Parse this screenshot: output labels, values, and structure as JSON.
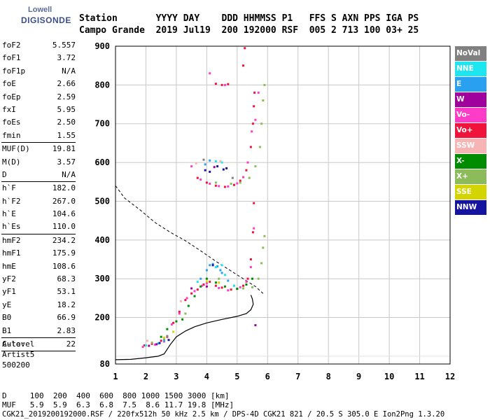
{
  "logo": {
    "line1": "Lowell",
    "line2": "DIGISONDE"
  },
  "header": {
    "labels": "Station       YYYY DAY    DDD HHMMSS P1   FFS S AXN PPS IGA PS",
    "values": "Campo Grande  2019 Jul19  200 192000 RSF  005 2 713 100 03+ 25"
  },
  "params": [
    {
      "name": "foF2",
      "value": "5.557"
    },
    {
      "name": "foF1",
      "value": "3.72"
    },
    {
      "name": "foF1p",
      "value": "N/A"
    },
    {
      "name": "foE",
      "value": "2.66"
    },
    {
      "name": "foEp",
      "value": "2.59"
    },
    {
      "name": "fxI",
      "value": "5.95"
    },
    {
      "name": "foEs",
      "value": "2.50"
    },
    {
      "name": "fmin",
      "value": "1.55"
    },
    {
      "sep": true
    },
    {
      "name": "MUF(D)",
      "value": "19.81"
    },
    {
      "name": "M(D)",
      "value": "3.57"
    },
    {
      "name": "D",
      "value": "N/A"
    },
    {
      "sep": true
    },
    {
      "name": "h`F",
      "value": "182.0"
    },
    {
      "name": "h`F2",
      "value": "267.0"
    },
    {
      "name": "h`E",
      "value": "104.6"
    },
    {
      "name": "h`Es",
      "value": "110.0"
    },
    {
      "sep": true
    },
    {
      "name": "hmF2",
      "value": "234.2"
    },
    {
      "name": "hmF1",
      "value": "175.9"
    },
    {
      "name": "hmE",
      "value": "108.6"
    },
    {
      "name": "yF2",
      "value": "68.3"
    },
    {
      "name": "yF1",
      "value": "53.1"
    },
    {
      "name": "yE",
      "value": "18.2"
    },
    {
      "name": "B0",
      "value": "66.9"
    },
    {
      "name": "B1",
      "value": "2.83"
    },
    {
      "sep": true
    },
    {
      "name": "C-level",
      "value": "22"
    },
    {
      "sep": true
    }
  ],
  "auto": {
    "line1": "Auto:",
    "line2": "Artist5",
    "line3": "500200"
  },
  "legend": [
    {
      "label": "NoVal",
      "color": "#808080"
    },
    {
      "label": "NNE",
      "color": "#1ee6f0"
    },
    {
      "label": "E",
      "color": "#2aa0f0"
    },
    {
      "label": "W",
      "color": "#a0009c"
    },
    {
      "label": "Vo-",
      "color": "#ff3cc8"
    },
    {
      "label": "Vo+",
      "color": "#f0143c"
    },
    {
      "label": "SSW",
      "color": "#f6b4b4"
    },
    {
      "label": "X-",
      "color": "#008c00"
    },
    {
      "label": "X+",
      "color": "#8cbc5a"
    },
    {
      "label": "SSE",
      "color": "#d4d400"
    },
    {
      "label": "NNW",
      "color": "#1414a0"
    }
  ],
  "bottom": {
    "d_line": "D     100  200  400  600  800 1000 1500 3000 [km]",
    "muf_line": "MUF   5.9  5.9  6.3  6.8  7.5  8.6 11.7 19.8 [MHz]",
    "footer": "CGK21_2019200192000.RSF / 220fx512h 50 kHz 2.5 km / DPS-4D CGK21 821 / 20.5 S 305.0 E Ion2Png 1.3.20"
  },
  "chart_data": {
    "type": "scatter",
    "xlim": [
      1,
      12
    ],
    "ylim": [
      80,
      900
    ],
    "x_ticks": [
      1,
      2,
      3,
      4,
      5,
      6,
      7,
      8,
      9,
      10,
      11,
      12
    ],
    "y_ticks": [
      80,
      200,
      300,
      400,
      500,
      600,
      700,
      800,
      900
    ],
    "grid": true,
    "series": [
      {
        "name": "Vo+",
        "color": "#f0143c",
        "points": [
          [
            1.95,
            128
          ],
          [
            2.2,
            132
          ],
          [
            2.5,
            140
          ],
          [
            2.7,
            150
          ],
          [
            2.9,
            186
          ],
          [
            3.1,
            215
          ],
          [
            3.3,
            245
          ],
          [
            3.5,
            262
          ],
          [
            3.7,
            272
          ],
          [
            3.9,
            285
          ],
          [
            4.1,
            292
          ],
          [
            4.3,
            282
          ],
          [
            4.5,
            277
          ],
          [
            4.8,
            272
          ],
          [
            5.0,
            274
          ],
          [
            5.2,
            282
          ],
          [
            5.35,
            300
          ],
          [
            5.45,
            350
          ],
          [
            5.52,
            420
          ],
          [
            5.55,
            495
          ],
          [
            3.7,
            560
          ],
          [
            4.0,
            548
          ],
          [
            4.3,
            540
          ],
          [
            4.6,
            537
          ],
          [
            4.9,
            542
          ],
          [
            5.1,
            553
          ],
          [
            5.3,
            580
          ],
          [
            5.45,
            640
          ],
          [
            5.52,
            700
          ],
          [
            5.55,
            745
          ],
          [
            5.57,
            780
          ],
          [
            4.3,
            803
          ],
          [
            4.5,
            800
          ],
          [
            4.7,
            802
          ],
          [
            5.2,
            850
          ],
          [
            5.25,
            895
          ]
        ]
      },
      {
        "name": "Vo-",
        "color": "#ff3cc8",
        "points": [
          [
            1.9,
            124
          ],
          [
            2.3,
            130
          ],
          [
            2.6,
            138
          ],
          [
            2.85,
            182
          ],
          [
            3.1,
            210
          ],
          [
            3.35,
            250
          ],
          [
            3.6,
            268
          ],
          [
            3.85,
            282
          ],
          [
            4.0,
            288
          ],
          [
            4.4,
            276
          ],
          [
            4.7,
            270
          ],
          [
            5.1,
            278
          ],
          [
            5.3,
            292
          ],
          [
            5.45,
            330
          ],
          [
            5.55,
            430
          ],
          [
            3.5,
            590
          ],
          [
            3.8,
            556
          ],
          [
            4.1,
            545
          ],
          [
            4.4,
            539
          ],
          [
            4.7,
            538
          ],
          [
            5.0,
            546
          ],
          [
            5.2,
            562
          ],
          [
            5.35,
            600
          ],
          [
            5.48,
            680
          ],
          [
            4.1,
            830
          ],
          [
            4.6,
            800
          ],
          [
            5.6,
            710
          ],
          [
            5.7,
            780
          ]
        ]
      },
      {
        "name": "X-",
        "color": "#008c00",
        "points": [
          [
            2.5,
            150
          ],
          [
            2.7,
            170
          ],
          [
            3.0,
            190
          ],
          [
            3.2,
            195
          ],
          [
            3.4,
            230
          ],
          [
            3.6,
            255
          ],
          [
            3.8,
            280
          ],
          [
            4.0,
            300
          ],
          [
            4.3,
            290
          ],
          [
            4.6,
            280
          ],
          [
            5.0,
            274
          ],
          [
            5.3,
            285
          ],
          [
            5.5,
            300
          ]
        ]
      },
      {
        "name": "X+",
        "color": "#8cbc5a",
        "points": [
          [
            2.2,
            135
          ],
          [
            2.6,
            145
          ],
          [
            3.3,
            210
          ],
          [
            4.4,
            300
          ],
          [
            4.9,
            282
          ],
          [
            5.2,
            275
          ],
          [
            5.5,
            278
          ],
          [
            5.7,
            300
          ],
          [
            5.8,
            340
          ],
          [
            5.85,
            380
          ],
          [
            5.9,
            410
          ],
          [
            4.3,
            548
          ],
          [
            4.8,
            545
          ],
          [
            5.1,
            548
          ],
          [
            5.4,
            560
          ],
          [
            5.6,
            590
          ],
          [
            5.75,
            640
          ],
          [
            5.8,
            700
          ],
          [
            5.85,
            760
          ],
          [
            5.9,
            800
          ]
        ]
      },
      {
        "name": "E",
        "color": "#2aa0f0",
        "points": [
          [
            2.6,
            140
          ],
          [
            3.8,
            300
          ],
          [
            4.0,
            322
          ],
          [
            4.1,
            335
          ],
          [
            4.2,
            338
          ],
          [
            4.35,
            332
          ],
          [
            4.45,
            322
          ],
          [
            4.5,
            315
          ],
          [
            4.7,
            295
          ],
          [
            3.95,
            595
          ],
          [
            4.1,
            605
          ]
        ]
      },
      {
        "name": "NNE",
        "color": "#1ee6f0",
        "points": [
          [
            2.0,
            128
          ],
          [
            2.4,
            133
          ],
          [
            3.7,
            292
          ],
          [
            4.3,
            330
          ],
          [
            4.5,
            335
          ],
          [
            4.6,
            310
          ],
          [
            4.9,
            282
          ],
          [
            4.3,
            603
          ],
          [
            4.5,
            600
          ]
        ]
      },
      {
        "name": "W",
        "color": "#a0009c",
        "points": [
          [
            2.1,
            127
          ],
          [
            2.35,
            131
          ],
          [
            3.5,
            275
          ],
          [
            4.0,
            280
          ],
          [
            5.6,
            180
          ],
          [
            4.25,
            588
          ]
        ]
      },
      {
        "name": "NNW",
        "color": "#1414a0",
        "points": [
          [
            2.45,
            134
          ],
          [
            2.75,
            142
          ],
          [
            4.2,
            335
          ],
          [
            3.95,
            580
          ],
          [
            4.1,
            576
          ],
          [
            4.55,
            582
          ],
          [
            4.65,
            585
          ],
          [
            4.35,
            590
          ]
        ]
      },
      {
        "name": "SSE",
        "color": "#d4d400",
        "points": [
          [
            2.6,
            148
          ],
          [
            2.9,
            163
          ],
          [
            4.0,
            293
          ],
          [
            4.4,
            290
          ]
        ]
      },
      {
        "name": "SSW",
        "color": "#f6b4b4",
        "points": [
          [
            2.05,
            140
          ],
          [
            3.15,
            242
          ],
          [
            3.65,
            598
          ],
          [
            4.45,
            603
          ]
        ]
      },
      {
        "name": "NoVal",
        "color": "#808080",
        "points": [
          [
            2.7,
            152
          ],
          [
            3.9,
            607
          ],
          [
            4.85,
            560
          ]
        ]
      }
    ],
    "profile": [
      [
        1.0,
        91
      ],
      [
        1.5,
        92
      ],
      [
        2.0,
        96
      ],
      [
        2.4,
        100
      ],
      [
        2.6,
        106
      ],
      [
        2.8,
        130
      ],
      [
        3.0,
        150
      ],
      [
        3.3,
        165
      ],
      [
        3.6,
        176
      ],
      [
        4.0,
        186
      ],
      [
        4.5,
        195
      ],
      [
        5.0,
        203
      ],
      [
        5.3,
        210
      ],
      [
        5.45,
        220
      ],
      [
        5.53,
        234
      ],
      [
        5.5,
        248
      ],
      [
        5.45,
        258
      ]
    ],
    "muf_curve": [
      [
        1.0,
        540
      ],
      [
        1.3,
        508
      ],
      [
        1.8,
        478
      ],
      [
        2.3,
        445
      ],
      [
        2.8,
        420
      ],
      [
        3.3,
        398
      ],
      [
        3.8,
        372
      ],
      [
        4.3,
        345
      ],
      [
        4.7,
        325
      ],
      [
        5.0,
        310
      ],
      [
        5.3,
        295
      ],
      [
        5.6,
        280
      ],
      [
        5.85,
        262
      ]
    ]
  }
}
